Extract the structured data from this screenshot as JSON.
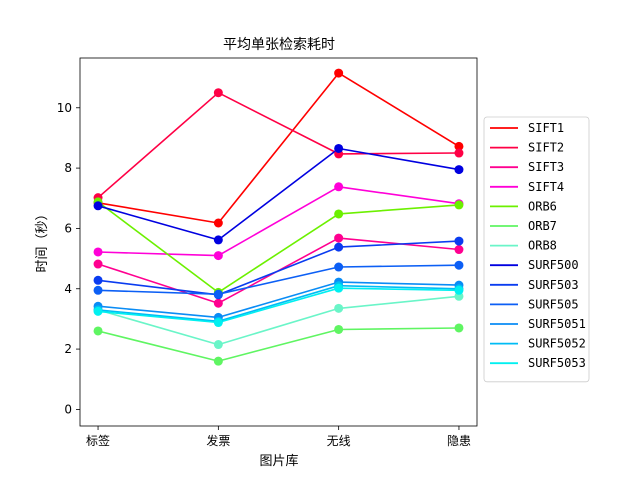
{
  "chart_data": {
    "type": "line",
    "title": "平均单张检索耗时",
    "xlabel": "图片库",
    "ylabel": "时间（秒）",
    "categories": [
      "标签",
      "发票",
      "无线",
      "隐患"
    ],
    "ylim": [
      -0.55,
      11.65
    ],
    "yticks": [
      0,
      2,
      4,
      6,
      8,
      10
    ],
    "grid": false,
    "legend_position": "right",
    "series": [
      {
        "name": "SIFT1",
        "color": "#ff0000",
        "values": [
          6.85,
          6.18,
          11.15,
          8.72
        ]
      },
      {
        "name": "SIFT2",
        "color": "#ff0045",
        "values": [
          7.02,
          10.5,
          8.47,
          8.5
        ]
      },
      {
        "name": "SIFT3",
        "color": "#ff0090",
        "values": [
          4.82,
          3.52,
          5.68,
          5.3
        ]
      },
      {
        "name": "SIFT4",
        "color": "#ff00d8",
        "values": [
          5.22,
          5.1,
          7.38,
          6.82
        ]
      },
      {
        "name": "ORB6",
        "color": "#6cf000",
        "values": [
          6.88,
          3.88,
          6.48,
          6.78
        ]
      },
      {
        "name": "ORB7",
        "color": "#5ff562",
        "values": [
          2.6,
          1.6,
          2.65,
          2.7
        ]
      },
      {
        "name": "ORB8",
        "color": "#6af5c8",
        "values": [
          3.3,
          2.15,
          3.35,
          3.75
        ]
      },
      {
        "name": "SURF500",
        "color": "#0000e0",
        "values": [
          6.75,
          5.62,
          8.65,
          7.95
        ]
      },
      {
        "name": "SURF503",
        "color": "#0a3cf0",
        "values": [
          4.28,
          3.8,
          5.38,
          5.58
        ]
      },
      {
        "name": "SURF505",
        "color": "#0c5ff5",
        "values": [
          3.95,
          3.82,
          4.72,
          4.78
        ]
      },
      {
        "name": "SURF5051",
        "color": "#0a8cf5",
        "values": [
          3.42,
          3.05,
          4.22,
          4.12
        ]
      },
      {
        "name": "SURF5052",
        "color": "#00bcf5",
        "values": [
          3.3,
          2.92,
          4.1,
          4.0
        ]
      },
      {
        "name": "SURF5053",
        "color": "#00f0f0",
        "values": [
          3.25,
          2.88,
          4.02,
          3.95
        ]
      }
    ]
  }
}
